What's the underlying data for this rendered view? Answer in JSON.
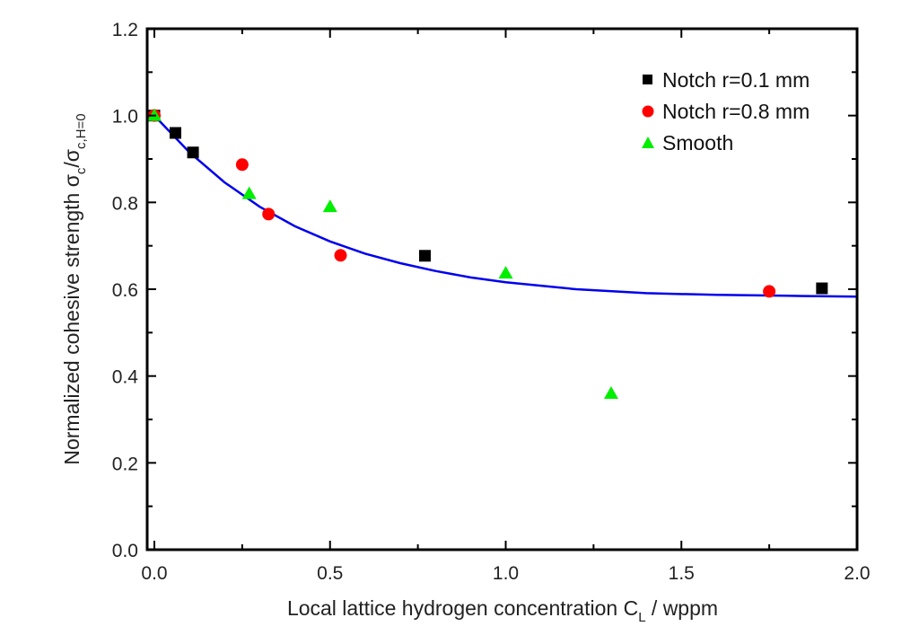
{
  "chart_data": {
    "type": "scatter",
    "title": "",
    "xlabel": "Local lattice hydrogen concentration C",
    "xlabel_sub": "L",
    "xlabel_suffix": " / wppm",
    "ylabel": "Normalized cohesive strength σ",
    "ylabel_sub1": "c",
    "ylabel_mid": "/σ",
    "ylabel_sub2": "c,H=0",
    "xlim": [
      0.0,
      2.0
    ],
    "ylim": [
      0.0,
      1.2
    ],
    "xticks": [
      "0.0",
      "0.5",
      "1.0",
      "1.5",
      "2.0"
    ],
    "yticks": [
      "0.0",
      "0.2",
      "0.4",
      "0.6",
      "0.8",
      "1.0",
      "1.2"
    ],
    "grid": false,
    "legend_position": "top-right",
    "series": [
      {
        "name": "Notch r=0.1 mm",
        "marker": "square",
        "color": "#000000",
        "x": [
          0.0,
          0.06,
          0.11,
          0.77,
          1.9
        ],
        "y": [
          1.0,
          0.96,
          0.915,
          0.677,
          0.602
        ]
      },
      {
        "name": "Notch r=0.8 mm",
        "marker": "circle",
        "color": "#ff0000",
        "x": [
          0.0,
          0.25,
          0.325,
          0.53,
          1.75
        ],
        "y": [
          1.0,
          0.887,
          0.773,
          0.678,
          0.595
        ]
      },
      {
        "name": "Smooth",
        "marker": "triangle",
        "color": "#00ee00",
        "x": [
          0.0,
          0.27,
          0.5,
          1.0,
          1.3
        ],
        "y": [
          1.0,
          0.82,
          0.79,
          0.637,
          0.36
        ]
      }
    ],
    "fit_curve": {
      "name": "fit",
      "color": "#0000ee",
      "x": [
        0.0,
        0.1,
        0.2,
        0.3,
        0.4,
        0.5,
        0.6,
        0.7,
        0.8,
        0.9,
        1.0,
        1.2,
        1.4,
        1.6,
        1.8,
        2.0
      ],
      "y": [
        1.0,
        0.915,
        0.846,
        0.79,
        0.745,
        0.71,
        0.682,
        0.66,
        0.642,
        0.627,
        0.616,
        0.6,
        0.591,
        0.587,
        0.585,
        0.583
      ]
    }
  }
}
